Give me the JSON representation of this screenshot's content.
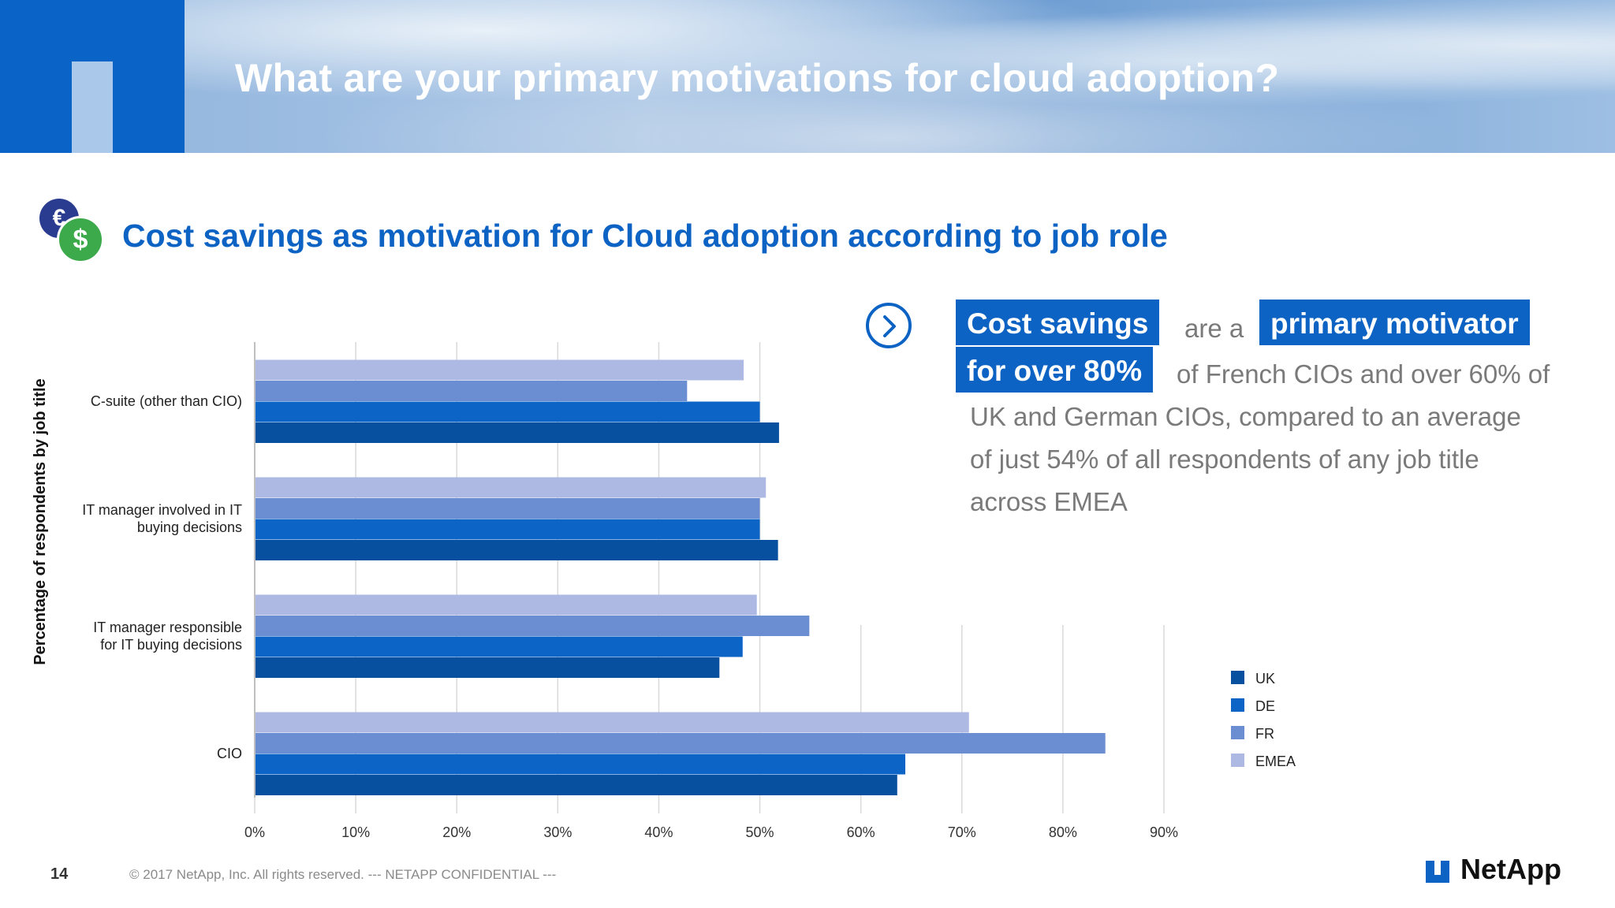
{
  "header": {
    "title": "What are your primary motivations for cloud adoption?"
  },
  "subtitle": {
    "text": "Cost savings as motivation for Cloud adoption according to job role",
    "icon": "currency-coins-icon"
  },
  "callout": {
    "icon": "chevron-right-circle-icon",
    "highlight1": "Cost savings",
    "text1": "are a",
    "highlight2": "primary motivator",
    "highlight3": "for over 80%",
    "line2_rest": "of French CIOs and over 60% of",
    "line3": "UK and German CIOs, compared to an average",
    "line4": "of just 54% of all respondents of any job title",
    "line5": "across EMEA",
    "highlight_color": "#0d63c4"
  },
  "footer": {
    "page": "14",
    "copyright": "© 2017 NetApp, Inc. All rights reserved.  --- NETAPP CONFIDENTIAL ---",
    "logo": "NetApp"
  },
  "chart_data": {
    "type": "bar",
    "orientation": "horizontal",
    "ylabel": "Percentage of respondents by job title",
    "categories": [
      "C-suite (other than CIO)",
      "IT manager involved in IT buying decisions",
      "IT manager responsible for IT buying decisions",
      "CIO"
    ],
    "xlim": [
      0,
      90
    ],
    "xticks": [
      "0%",
      "10%",
      "20%",
      "30%",
      "40%",
      "50%",
      "60%",
      "70%",
      "80%",
      "90%"
    ],
    "series": [
      {
        "name": "EMEA",
        "color": "#adb9e3",
        "values": [
          48.4,
          50.6,
          49.7,
          70.7
        ]
      },
      {
        "name": "FR",
        "color": "#6b8ed3",
        "values": [
          42.8,
          50.0,
          54.9,
          84.2
        ]
      },
      {
        "name": "DE",
        "color": "#0b64c6",
        "values": [
          50.0,
          50.0,
          48.3,
          64.4
        ]
      },
      {
        "name": "UK",
        "color": "#0750a0",
        "values": [
          51.9,
          51.8,
          46.0,
          63.6
        ]
      }
    ],
    "legend": [
      "UK",
      "DE",
      "FR",
      "EMEA"
    ],
    "legend_position": "right",
    "grid": true
  }
}
